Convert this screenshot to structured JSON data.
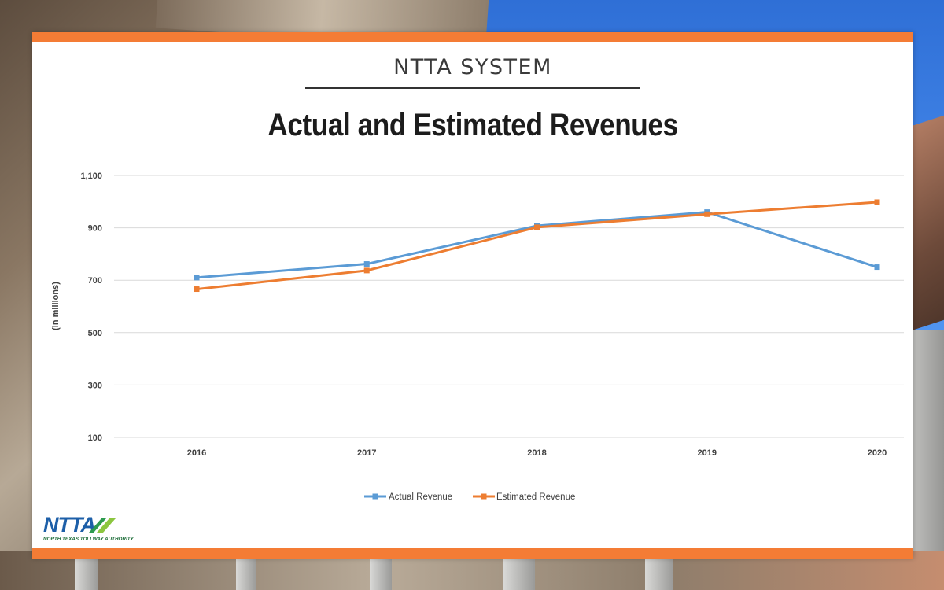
{
  "header": {
    "system_title": "NTTA SYSTEM",
    "chart_title": "Actual and Estimated Revenues"
  },
  "logo": {
    "mark": "NTTA",
    "tagline": "NORTH TEXAS TOLLWAY AUTHORITY",
    "icon": "ntta-swoosh-icon"
  },
  "colors": {
    "accent_bar": "#f47c35",
    "actual_series": "#5b9bd5",
    "estimated_series": "#ed7d31",
    "gridline": "#d9d9d9",
    "logo_blue": "#1d5fa8",
    "logo_green": "#1f6e3a"
  },
  "chart_data": {
    "type": "line",
    "title": "Actual and Estimated Revenues",
    "xlabel": "",
    "ylabel": "(in millions)",
    "categories": [
      "2016",
      "2017",
      "2018",
      "2019",
      "2020"
    ],
    "yticks": [
      100,
      300,
      500,
      700,
      900,
      1100
    ],
    "ytick_labels": [
      "100",
      "300",
      "500",
      "700",
      "900",
      "1,100"
    ],
    "ylim": [
      100,
      1100
    ],
    "grid": true,
    "legend_position": "bottom-center",
    "series": [
      {
        "name": "Actual Revenue",
        "color": "#5b9bd5",
        "values": [
          710,
          762,
          908,
          960,
          750
        ]
      },
      {
        "name": "Estimated Revenue",
        "color": "#ed7d31",
        "values": [
          666,
          737,
          902,
          952,
          998
        ]
      }
    ]
  }
}
